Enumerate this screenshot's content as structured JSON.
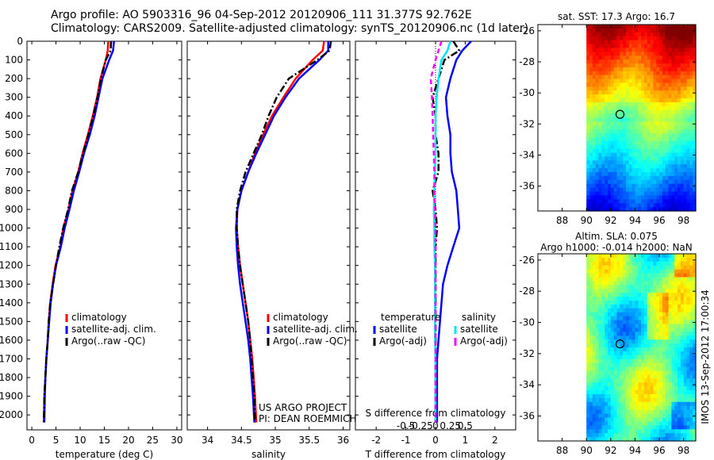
{
  "header": {
    "line1": "Argo profile: AO 5903316_96 04-Sep-2012 20120906_111 31.377S 92.762E",
    "line2": "Climatology: CARS2009. Satellite-adjusted climatology: synTS_20120906.nc (1d later)"
  },
  "colors": {
    "climatology": "#ff0000",
    "satellite": "#0000ff",
    "argo": "#000000",
    "salinity_satellite": "#00e5ee",
    "salinity_argo": "#ff00ff"
  },
  "chart_data": [
    {
      "type": "line",
      "panel": "temperature",
      "xlabel": "temperature (deg C)",
      "ylabel": "",
      "xlim": [
        -1,
        31
      ],
      "ylim": [
        2080,
        0
      ],
      "xticks": [
        "0",
        "5",
        "10",
        "15",
        "20",
        "25",
        "30"
      ],
      "yticks": [
        "0",
        "100",
        "200",
        "300",
        "400",
        "500",
        "600",
        "700",
        "800",
        "900",
        "1000",
        "1100",
        "1200",
        "1300",
        "1400",
        "1500",
        "1600",
        "1700",
        "1800",
        "1900",
        "2000"
      ],
      "legend": [
        "climatology",
        "satellite-adj. clim.",
        "Argo(..raw -QC)"
      ],
      "series": [
        {
          "name": "climatology",
          "style": "solid",
          "color": "#ff0000",
          "x": [
            15.8,
            15.7,
            15.3,
            14.2,
            13.5,
            12.6,
            11.6,
            10.5,
            9.6,
            8.4,
            7.6,
            6.5,
            5.9,
            4.9,
            4.3,
            3.8,
            3.5,
            3.3,
            3.0,
            2.8,
            2.6,
            2.5
          ],
          "y": [
            0,
            50,
            100,
            200,
            300,
            400,
            500,
            600,
            700,
            800,
            900,
            1000,
            1100,
            1200,
            1300,
            1400,
            1500,
            1600,
            1700,
            1800,
            1900,
            2040
          ]
        },
        {
          "name": "satellite-adj. clim.",
          "style": "solid",
          "color": "#0000ff",
          "x": [
            17.0,
            16.8,
            16.0,
            14.6,
            13.8,
            13.0,
            12.0,
            10.8,
            9.8,
            8.7,
            7.8,
            6.8,
            6.0,
            5.0,
            4.4,
            3.9,
            3.6,
            3.3,
            3.0,
            2.8,
            2.7,
            2.6
          ],
          "y": [
            0,
            50,
            100,
            200,
            300,
            400,
            500,
            600,
            700,
            800,
            900,
            1000,
            1100,
            1200,
            1300,
            1400,
            1500,
            1600,
            1700,
            1800,
            1900,
            2040
          ]
        },
        {
          "name": "Argo(..raw -QC)",
          "style": "dashdot",
          "color": "#000000",
          "x": [
            16.4,
            16.3,
            15.3,
            14.3,
            13.6,
            12.7,
            11.7,
            10.6,
            9.6,
            8.3,
            7.5,
            6.5,
            5.7,
            5.0,
            4.4,
            3.8,
            3.5,
            3.3,
            3.0,
            2.8,
            2.6,
            2.5
          ],
          "y": [
            0,
            50,
            100,
            200,
            300,
            400,
            500,
            600,
            700,
            800,
            900,
            1000,
            1100,
            1200,
            1300,
            1400,
            1500,
            1600,
            1700,
            1800,
            1900,
            2040
          ]
        }
      ]
    },
    {
      "type": "line",
      "panel": "salinity",
      "xlabel": "salinity",
      "ylabel": "",
      "xlim": [
        33.7,
        36.1
      ],
      "ylim": [
        2080,
        0
      ],
      "xticks": [
        "34",
        "34.5",
        "35",
        "35.5",
        "36"
      ],
      "legend": [
        "climatology",
        "satellite-adj. clim.",
        "Argo(..raw -QC)"
      ],
      "annotation": [
        "US ARGO PROJECT",
        "PI: DEAN ROEMMICH"
      ],
      "series": [
        {
          "name": "climatology",
          "style": "solid",
          "color": "#ff0000",
          "x": [
            35.72,
            35.7,
            35.55,
            35.3,
            35.12,
            34.95,
            34.82,
            34.7,
            34.6,
            34.5,
            34.44,
            34.43,
            34.45,
            34.48,
            34.52,
            34.56,
            34.6,
            34.63,
            34.66,
            34.68,
            34.7,
            34.72
          ],
          "y": [
            0,
            50,
            100,
            200,
            300,
            400,
            500,
            600,
            700,
            800,
            900,
            1000,
            1100,
            1200,
            1300,
            1400,
            1500,
            1600,
            1700,
            1800,
            1900,
            2040
          ]
        },
        {
          "name": "satellite-adj. clim.",
          "style": "solid",
          "color": "#0000ff",
          "x": [
            35.78,
            35.78,
            35.65,
            35.35,
            35.15,
            34.98,
            34.85,
            34.72,
            34.6,
            34.5,
            34.44,
            34.42,
            34.43,
            34.45,
            34.48,
            34.52,
            34.56,
            34.6,
            34.63,
            34.65,
            34.67,
            34.69
          ],
          "y": [
            0,
            50,
            100,
            200,
            300,
            400,
            500,
            600,
            700,
            800,
            900,
            1000,
            1100,
            1200,
            1300,
            1400,
            1500,
            1600,
            1700,
            1800,
            1900,
            2040
          ]
        },
        {
          "name": "Argo(..raw -QC)",
          "style": "dashdot",
          "color": "#000000",
          "x": [
            35.82,
            35.8,
            35.62,
            35.2,
            35.02,
            34.9,
            34.8,
            34.68,
            34.56,
            34.48,
            34.43,
            34.43,
            34.45,
            34.48,
            34.52,
            34.56,
            34.6,
            34.63,
            34.65,
            34.67,
            34.69,
            34.7
          ],
          "y": [
            0,
            50,
            100,
            200,
            300,
            400,
            500,
            600,
            700,
            800,
            900,
            1000,
            1100,
            1200,
            1300,
            1400,
            1500,
            1600,
            1700,
            1800,
            1900,
            2040
          ]
        }
      ]
    },
    {
      "type": "line",
      "panel": "difference",
      "xlabel": "T difference from climatology",
      "xlabel_top": "S difference from climatology",
      "xlim_T": [
        -2.7,
        2.7
      ],
      "xticks_T": [
        "-2",
        "-1",
        "0",
        "1",
        "2"
      ],
      "xticks_S": [
        "-0.5",
        "-0.25",
        "0",
        "0.25",
        "0.5"
      ],
      "ylim": [
        2080,
        0
      ],
      "legend_groups": [
        {
          "title": "temperature",
          "entries": [
            "satellite",
            "Argo(-adj)"
          ]
        },
        {
          "title": "salinity",
          "entries": [
            "satellite",
            "Argo(-adj)"
          ]
        }
      ],
      "series": [
        {
          "name": "temperature satellite",
          "style": "solid",
          "color": "#0000ff",
          "x": [
            1.2,
            0.9,
            0.7,
            0.5,
            0.35,
            0.4,
            0.5,
            0.5,
            0.55,
            0.7,
            0.75,
            0.8,
            0.6,
            0.4,
            0.25,
            0.2,
            0.15,
            0.1,
            0.05,
            0.05,
            0.05,
            0.05
          ],
          "y": [
            0,
            50,
            100,
            200,
            300,
            400,
            500,
            600,
            700,
            800,
            900,
            1000,
            1100,
            1200,
            1300,
            1400,
            1500,
            1600,
            1700,
            1800,
            1900,
            2040
          ]
        },
        {
          "name": "temperature Argo(-adj)",
          "style": "dashdot",
          "color": "#000000",
          "x": [
            0.6,
            0.8,
            0.3,
            0.1,
            -0.1,
            0.0,
            0.0,
            0.1,
            0.1,
            -0.1,
            0.0,
            0.05,
            0.0,
            0.0,
            0.0,
            0.0,
            0.0,
            0.0,
            0.0,
            0.0,
            0.0,
            0.0
          ],
          "y": [
            0,
            50,
            100,
            200,
            300,
            400,
            500,
            600,
            700,
            800,
            900,
            1000,
            1100,
            1200,
            1300,
            1400,
            1500,
            1600,
            1700,
            1800,
            1900,
            2040
          ]
        },
        {
          "name": "salinity satellite",
          "style": "solid",
          "color": "#00e5ee",
          "x": [
            0.25,
            0.2,
            0.1,
            0.05,
            0.02,
            0.0,
            0.0,
            0.0,
            -0.01,
            -0.02,
            -0.03,
            -0.02,
            -0.02,
            -0.01,
            -0.01,
            -0.01,
            -0.01,
            -0.01,
            0.0,
            0.0,
            0.0,
            0.0
          ],
          "y": [
            0,
            50,
            100,
            200,
            300,
            400,
            500,
            600,
            700,
            800,
            900,
            1000,
            1100,
            1200,
            1300,
            1400,
            1500,
            1600,
            1700,
            1800,
            1900,
            2040
          ]
        },
        {
          "name": "salinity Argo(-adj)",
          "style": "dashed",
          "color": "#ff00ff",
          "x": [
            0.1,
            0.05,
            0.0,
            -0.08,
            -0.06,
            -0.05,
            -0.04,
            -0.03,
            -0.02,
            -0.02,
            -0.01,
            0.0,
            0.0,
            0.0,
            0.0,
            0.0,
            0.0,
            0.0,
            0.0,
            0.0,
            0.0,
            0.0
          ],
          "y": [
            0,
            50,
            100,
            200,
            300,
            400,
            500,
            600,
            700,
            800,
            900,
            1000,
            1100,
            1200,
            1300,
            1400,
            1500,
            1600,
            1700,
            1800,
            1900,
            2040
          ]
        }
      ]
    },
    {
      "type": "heatmap",
      "panel": "sst-map",
      "title": "sat. SST: 17.3 Argo: 16.7",
      "xlim": [
        86,
        99
      ],
      "ylim": [
        -37.6,
        -25.6
      ],
      "xticks": [
        "88",
        "90",
        "92",
        "94",
        "96",
        "98"
      ],
      "yticks": [
        "-26",
        "-28",
        "-30",
        "-32",
        "-34",
        "-36"
      ],
      "marker": {
        "lon": 92.762,
        "lat": -31.377
      }
    },
    {
      "type": "heatmap",
      "panel": "sla-map",
      "title": "Altim. SLA: 0.075",
      "subtitle": "Argo h1000: -0.014 h2000: NaN",
      "xlim": [
        86,
        99
      ],
      "ylim": [
        -37.6,
        -25.6
      ],
      "xticks": [
        "88",
        "90",
        "92",
        "94",
        "96",
        "98"
      ],
      "yticks": [
        "-26",
        "-28",
        "-30",
        "-32",
        "-34",
        "-36"
      ],
      "marker": {
        "lon": 92.762,
        "lat": -31.377
      }
    }
  ],
  "side_text": "IMOS 13-Sep-2012 17:00:34"
}
